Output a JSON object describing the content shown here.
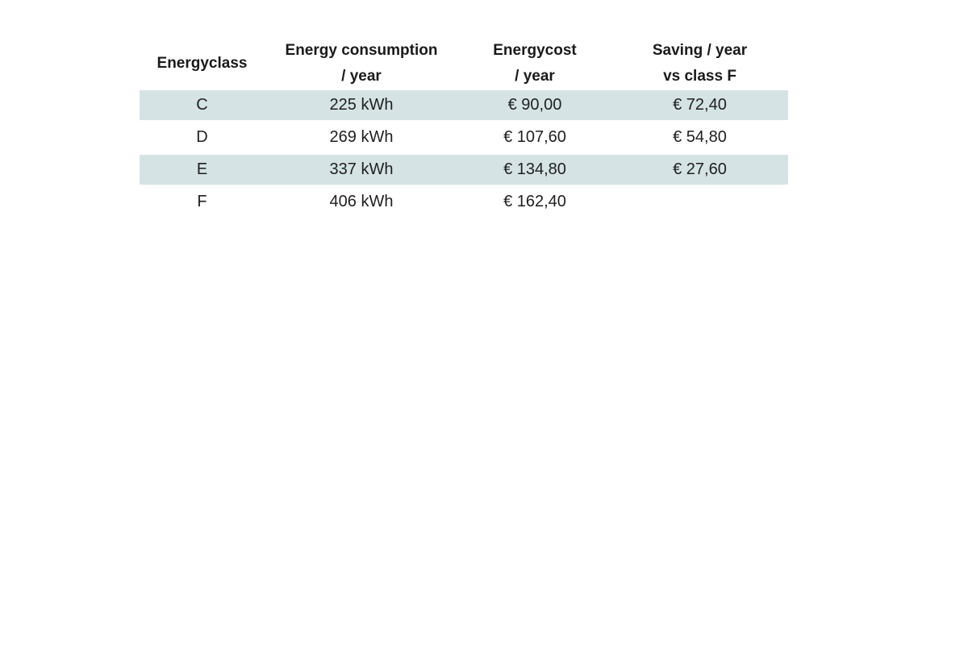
{
  "chart_data": {
    "type": "table",
    "title": "",
    "columns": [
      {
        "line1": "Energyclass",
        "line2": ""
      },
      {
        "line1": "Energy consumption",
        "line2": "/ year"
      },
      {
        "line1": "Energycost",
        "line2": "/ year"
      },
      {
        "line1": "Saving / year",
        "line2": "vs class F"
      }
    ],
    "rows": [
      {
        "energyclass": "C",
        "consumption_per_year": "225 kWh",
        "cost_per_year": "€ 90,00",
        "saving_per_year_vs_F": "€ 72,40"
      },
      {
        "energyclass": "D",
        "consumption_per_year": "269 kWh",
        "cost_per_year": "€ 107,60",
        "saving_per_year_vs_F": "€ 54,80"
      },
      {
        "energyclass": "E",
        "consumption_per_year": "337 kWh",
        "cost_per_year": "€ 134,80",
        "saving_per_year_vs_F": "€ 27,60"
      },
      {
        "energyclass": "F",
        "consumption_per_year": "406 kWh",
        "cost_per_year": "€ 162,40",
        "saving_per_year_vs_F": ""
      }
    ],
    "numeric": {
      "consumption_kwh": [
        225,
        269,
        337,
        406
      ],
      "cost_eur": [
        90.0,
        107.6,
        134.8,
        162.4
      ],
      "saving_vs_class_F_eur": [
        72.4,
        54.8,
        27.6,
        null
      ]
    },
    "layout": {
      "highlighted_rows": [
        "C",
        "E"
      ],
      "grid": false,
      "header_bold": true
    },
    "colors": {
      "row_highlight": "#d5e3e4",
      "text": "#1f1f1f",
      "background": "#ffffff"
    }
  }
}
